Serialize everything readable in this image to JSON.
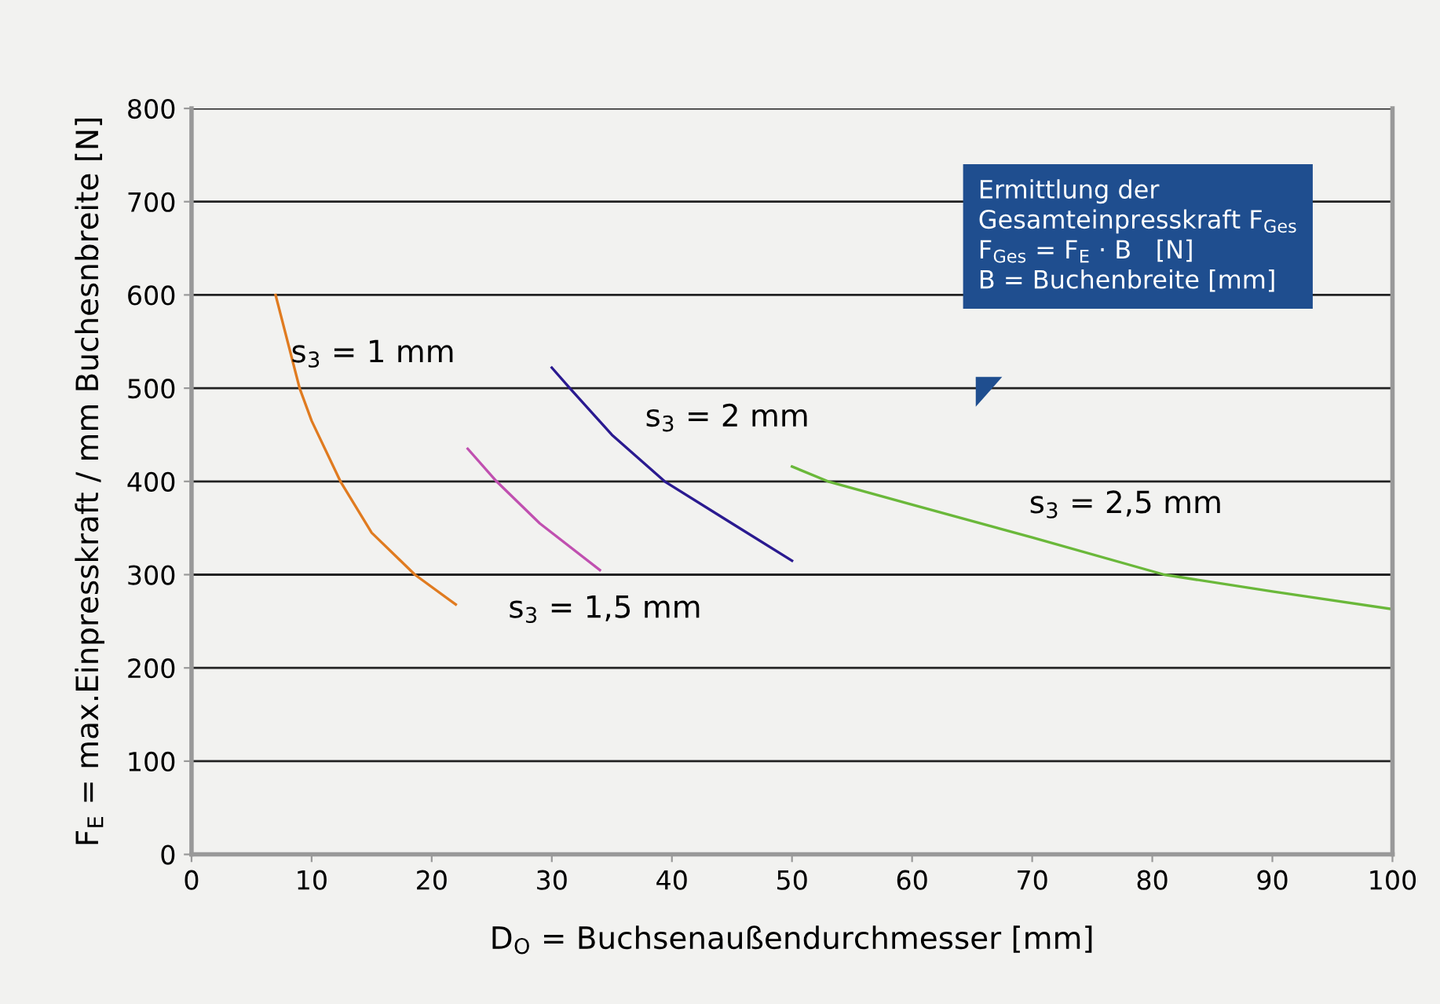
{
  "chart_data": {
    "type": "line",
    "xlabel": "D$_{O}$ = Buchsenaußendurchmesser [mm]",
    "ylabel": "F$_{E}$ = max.Einpresskraft / mm Buchesnbreite [N]",
    "series": [
      {
        "name": "s$_{3}$ = 1 mm",
        "color": "#e07b20",
        "x": [
          7,
          9,
          10,
          12.4,
          15,
          18.6,
          22
        ],
        "values": [
          600,
          500,
          465,
          400,
          345,
          300,
          268
        ]
      },
      {
        "name": "s$_{3}$ = 1,5 mm",
        "color": "#c050b0",
        "x": [
          23,
          25.4,
          29,
          34
        ],
        "values": [
          435,
          400,
          355,
          305
        ]
      },
      {
        "name": "s$_{3}$ = 2 mm",
        "color": "#2a1a90",
        "x": [
          30,
          31.5,
          35,
          39.4,
          45,
          50
        ],
        "values": [
          522,
          500,
          450,
          400,
          355,
          315
        ]
      },
      {
        "name": "s$_{3}$ = 2,5 mm",
        "color": "#6ab83a",
        "x": [
          50,
          53,
          60,
          70,
          81,
          90,
          100
        ],
        "values": [
          416,
          400,
          375,
          340,
          300,
          282,
          263
        ]
      }
    ],
    "annotations": [
      "Ermittlung der\nGesamteinpresskraft F$_{Ges}$\nF$_{Ges}$ = F$_{E}$ · B   [N]\nB = Buchenbreite [mm]"
    ],
    "xlim": [
      0,
      100
    ],
    "xticks": [
      0,
      10,
      20,
      30,
      40,
      50,
      60,
      70,
      80,
      90,
      100
    ],
    "ylim": [
      0,
      800
    ],
    "yticks": [
      0,
      100,
      200,
      300,
      400,
      500,
      600,
      700,
      800
    ],
    "grid": "y",
    "marker": "none",
    "line_style": "solid"
  }
}
